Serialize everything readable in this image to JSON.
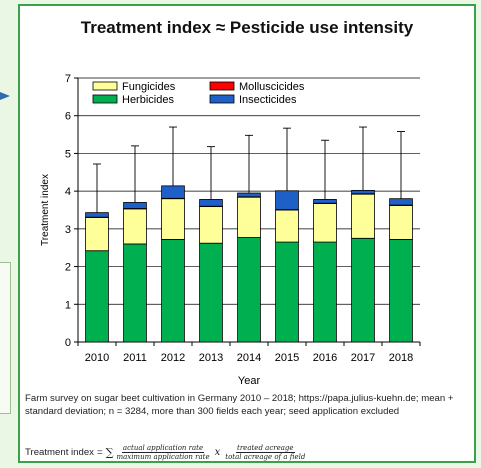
{
  "chart_data": {
    "type": "bar",
    "stacked": true,
    "title": "Treatment index ≈ Pesticide use intensity",
    "xlabel": "Year",
    "ylabel": "Treatment index",
    "ylim": [
      0,
      7
    ],
    "yticks": [
      "0",
      "1",
      "2",
      "3",
      "4",
      "5",
      "6",
      "7"
    ],
    "grid": true,
    "legend_position": "top-left",
    "categories": [
      "2010",
      "2011",
      "2012",
      "2013",
      "2014",
      "2015",
      "2016",
      "2017",
      "2018"
    ],
    "series": [
      {
        "name": "Herbicides",
        "color": "#00b050",
        "values": [
          2.42,
          2.6,
          2.72,
          2.62,
          2.77,
          2.65,
          2.65,
          2.75,
          2.72
        ]
      },
      {
        "name": "Fungicides",
        "color": "#ffff99",
        "values": [
          0.88,
          0.93,
          1.08,
          0.97,
          1.07,
          0.85,
          1.02,
          1.17,
          0.9
        ]
      },
      {
        "name": "Molluscicides",
        "color": "#ff0000",
        "values": [
          0.01,
          0.01,
          0.01,
          0.01,
          0.01,
          0.01,
          0.01,
          0.01,
          0.01
        ]
      },
      {
        "name": "Insecticides",
        "color": "#1f5fc8",
        "values": [
          0.12,
          0.16,
          0.33,
          0.18,
          0.1,
          0.5,
          0.1,
          0.09,
          0.17
        ]
      }
    ],
    "error_bar_upper": [
      4.72,
      5.2,
      5.7,
      5.18,
      5.48,
      5.67,
      5.35,
      5.7,
      5.58
    ]
  },
  "caption": "Farm survey on sugar beet cultivation in Germany 2010 – 2018; https://papa.julius-kuehn.de; mean + standard deviation; n = 3284, more than 300 fields each year; seed application excluded",
  "formula": {
    "lhs": "Treatment index",
    "equals": "=",
    "sum": "∑",
    "frac1_num": "actual application rate",
    "frac1_den": "maximum application rate",
    "times": "x",
    "frac2_num": "treated acreage",
    "frac2_den": "total acreage of a field"
  },
  "colors": {
    "panel_border": "#3aa04a",
    "background": "#eaf7e5",
    "arrow": "#2f6db0"
  }
}
